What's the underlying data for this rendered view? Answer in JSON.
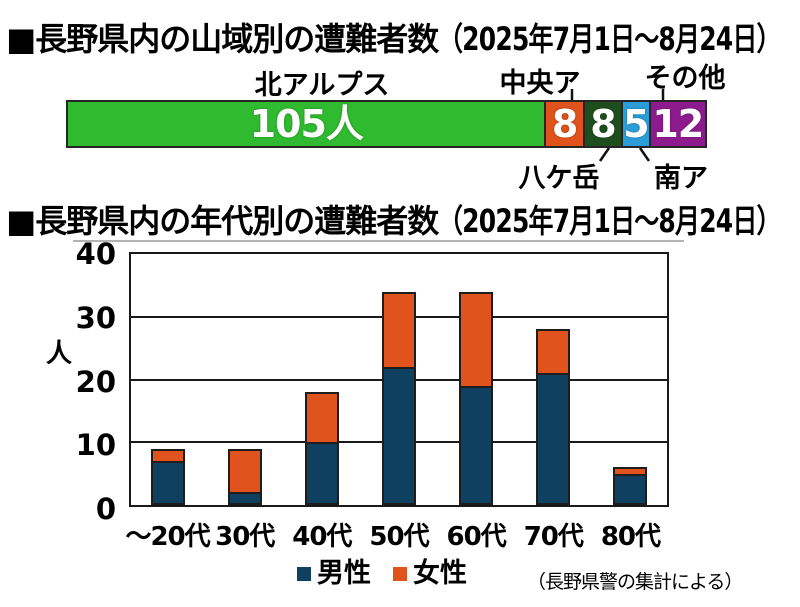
{
  "page": {
    "background": "#ffffff"
  },
  "colors": {
    "kita_alps_green": "#2fba2f",
    "chuo_alps_orange": "#e1531c",
    "yatsugatake_dark_green": "#1e4d1e",
    "minami_alps_blue": "#2b9ed9",
    "sonota_purple": "#8e1b8e",
    "male_navy": "#104060",
    "female_orange": "#e1531c",
    "divider_gray": "#b3b3b3",
    "grid_black": "#1a1a1a"
  },
  "section_region": {
    "title_main": "■長野県内の山域別の遭難者数",
    "title_paren": "（2025年7月1日～8月24日）",
    "label_kita_alps": "北アルプス",
    "label_chuo_alps": "中央ア",
    "label_sonota": "その他",
    "label_yatsugatake": "八ケ岳",
    "label_minami_alps": "南ア"
  },
  "section_age": {
    "title_main": "■長野県内の年代別の遭難者数",
    "title_paren": "（2025年7月1日～8月24日）",
    "y_axis_unit": "人",
    "legend_male": "男性",
    "legend_female": "女性",
    "source_note": "（長野県警の集計による）"
  },
  "chart_data": [
    {
      "type": "bar",
      "subtype": "horizontal_stacked",
      "title": "長野県内の山域別の遭難者数（2025年7月1日～8月24日）",
      "categories": [
        "北アルプス",
        "中央ア",
        "八ケ岳",
        "南ア",
        "その他"
      ],
      "values": [
        105,
        8,
        8,
        5,
        12
      ],
      "display_values": [
        "105人",
        "8",
        "8",
        "5",
        "12"
      ],
      "colors": [
        "#2fba2f",
        "#e1531c",
        "#1e4d1e",
        "#2b9ed9",
        "#8e1b8e"
      ],
      "total": 138,
      "unit": "人"
    },
    {
      "type": "bar",
      "subtype": "vertical_stacked",
      "title": "長野県内の年代別の遭難者数（2025年7月1日～8月24日）",
      "categories": [
        "～20代",
        "30代",
        "40代",
        "50代",
        "60代",
        "70代",
        "80代"
      ],
      "series": [
        {
          "name": "男性",
          "color": "#104060",
          "values": [
            7,
            2,
            10,
            22,
            19,
            21,
            5
          ]
        },
        {
          "name": "女性",
          "color": "#e1531c",
          "values": [
            2,
            7,
            8,
            12,
            15,
            7,
            1
          ]
        }
      ],
      "totals": [
        9,
        9,
        18,
        34,
        34,
        28,
        6
      ],
      "ylabel": "人",
      "ylim": [
        0,
        40
      ],
      "yticks": [
        0,
        10,
        20,
        30,
        40
      ],
      "grid": true,
      "legend_position": "bottom",
      "source_note": "（長野県警の集計による）"
    }
  ]
}
